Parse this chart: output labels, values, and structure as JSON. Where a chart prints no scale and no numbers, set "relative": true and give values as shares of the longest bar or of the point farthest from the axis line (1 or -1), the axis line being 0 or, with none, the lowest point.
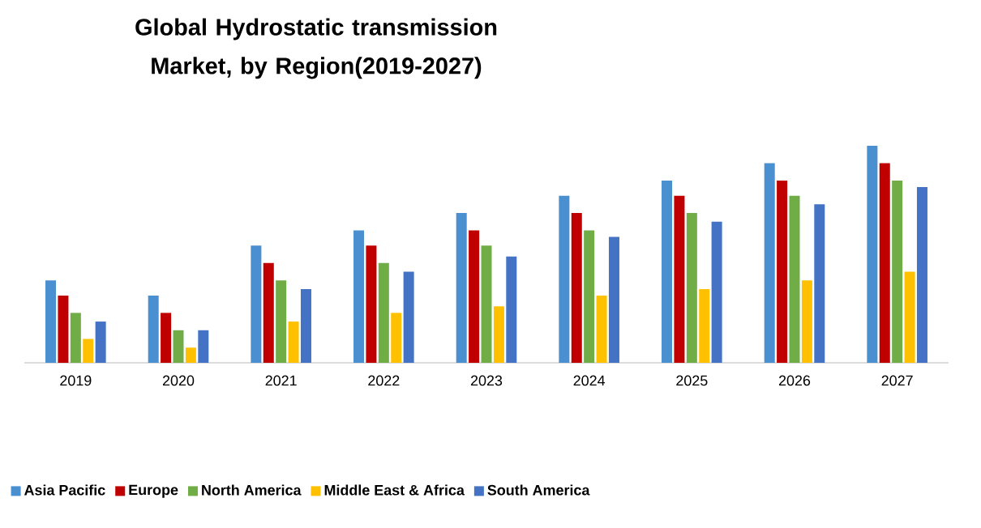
{
  "chart_data": {
    "type": "bar",
    "title": "Global Hydrostatic transmission Market, by Region(2019-2027)",
    "categories": [
      "2019",
      "2020",
      "2021",
      "2022",
      "2023",
      "2024",
      "2025",
      "2026",
      "2027"
    ],
    "relative": true,
    "legend": "bottom",
    "series": [
      {
        "name": "Asia Pacific",
        "color": "#4a8fd0",
        "values": [
          0.38,
          0.31,
          0.54,
          0.61,
          0.69,
          0.77,
          0.84,
          0.92,
          1
        ]
      },
      {
        "name": "Europe",
        "color": "#c00000",
        "values": [
          0.31,
          0.23,
          0.46,
          0.54,
          0.61,
          0.69,
          0.77,
          0.84,
          0.92
        ]
      },
      {
        "name": "North America",
        "color": "#70ad47",
        "values": [
          0.23,
          0.15,
          0.38,
          0.46,
          0.54,
          0.61,
          0.69,
          0.77,
          0.84
        ]
      },
      {
        "name": "Middle East & Africa",
        "color": "#ffc000",
        "values": [
          0.11,
          0.07,
          0.19,
          0.23,
          0.26,
          0.31,
          0.34,
          0.38,
          0.42
        ]
      },
      {
        "name": "South America",
        "color": "#4472c4",
        "values": [
          0.19,
          0.15,
          0.34,
          0.42,
          0.49,
          0.58,
          0.65,
          0.73,
          0.81
        ]
      }
    ]
  }
}
